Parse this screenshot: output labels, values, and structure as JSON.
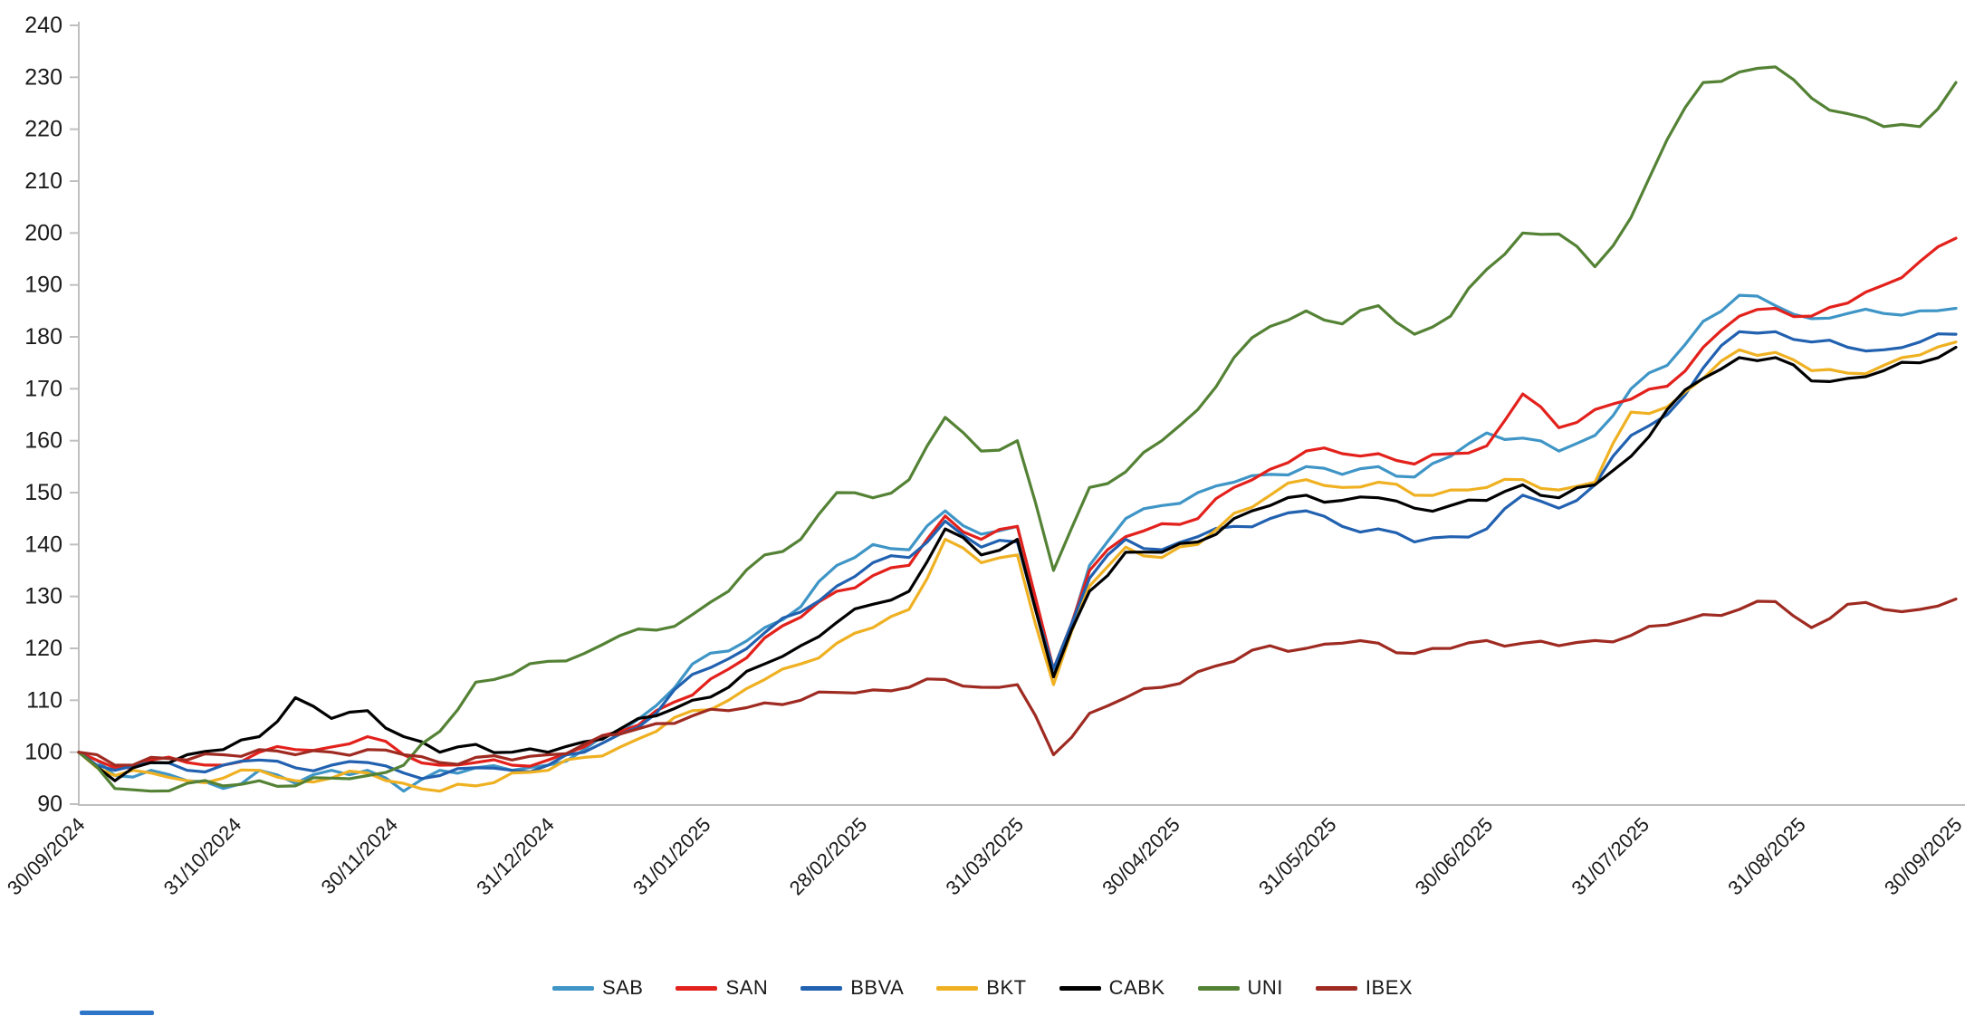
{
  "chart_data": {
    "type": "line",
    "title": "",
    "xlabel": "",
    "ylabel": "",
    "x_span": [
      "30/09/2024",
      "30/09/2025"
    ],
    "x_tick_labels": [
      "30/09/2024",
      "31/10/2024",
      "30/11/2024",
      "31/12/2024",
      "31/01/2025",
      "28/02/2025",
      "31/03/2025",
      "30/04/2025",
      "31/05/2025",
      "30/06/2025",
      "31/07/2025",
      "31/08/2025",
      "30/09/2025"
    ],
    "y_axis": {
      "min": 90,
      "max": 240,
      "step": 10,
      "tick_labels": [
        "90",
        "100",
        "110",
        "120",
        "130",
        "140",
        "150",
        "160",
        "170",
        "180",
        "190",
        "200",
        "210",
        "220",
        "230",
        "240"
      ]
    },
    "grid": false,
    "legend_position": "bottom",
    "sampling": "weekly (53 points per series, week 0 = 30/09/2024)",
    "axis_color": "#bfbfbf",
    "text_color": "#1a1a1a",
    "series": [
      {
        "name": "SAB",
        "color": "#3e95c6",
        "values": [
          100,
          95.5,
          96.5,
          94.5,
          93,
          96.5,
          94,
          96.5,
          96.5,
          92.5,
          96.5,
          97,
          96.5,
          97.5,
          100.5,
          104,
          109,
          117,
          119.5,
          124,
          128,
          136,
          140,
          139,
          146.5,
          142,
          143.5,
          114.5,
          136,
          145,
          147.5,
          150,
          152,
          153.5,
          155,
          153.5,
          155,
          153,
          157,
          161.5,
          160.5,
          158,
          161,
          170,
          174.5,
          183,
          188,
          186,
          183.5,
          184.5,
          184.5,
          185,
          185.5
        ]
      },
      {
        "name": "SAN",
        "color": "#e3211c",
        "values": [
          100,
          97,
          98.5,
          98,
          97.5,
          100,
          100.5,
          101,
          103,
          99.5,
          97.5,
          98,
          97.5,
          98.5,
          101,
          104,
          108,
          111,
          116,
          122,
          126,
          131,
          134,
          136,
          145.5,
          141,
          143.5,
          116,
          135,
          141.5,
          144,
          145,
          151,
          154.5,
          158,
          157.5,
          157.5,
          155.5,
          157.5,
          159,
          169,
          162.5,
          166,
          168,
          170.5,
          178,
          184,
          185.5,
          184,
          186.5,
          190,
          194.5,
          199
        ]
      },
      {
        "name": "BBVA",
        "color": "#2161b0",
        "values": [
          100,
          96.5,
          98,
          96.5,
          97.5,
          98.5,
          97,
          97.5,
          98,
          96,
          95.5,
          97,
          96.5,
          97.5,
          100,
          103.5,
          107.5,
          115,
          118,
          123,
          127,
          132,
          136.5,
          137.5,
          144.5,
          139.5,
          140.5,
          116,
          133.5,
          141,
          139,
          141.5,
          143.5,
          145,
          146.5,
          143.5,
          143,
          140.5,
          141.5,
          143,
          149.5,
          147,
          151.5,
          161,
          165,
          174,
          181,
          181,
          179,
          178,
          177.5,
          179,
          180.5
        ]
      },
      {
        "name": "BKT",
        "color": "#efb122",
        "values": [
          100,
          95.5,
          96,
          94.5,
          95,
          96.5,
          94.5,
          95,
          96,
          94,
          92.5,
          93.5,
          96,
          96.5,
          99,
          101,
          104,
          108,
          110,
          114,
          117,
          121,
          124,
          127.5,
          141,
          136.5,
          138,
          113,
          132,
          139.5,
          137.5,
          140,
          146,
          149.5,
          152.5,
          151,
          152,
          149.5,
          150.5,
          151,
          152.5,
          150.5,
          152,
          165.5,
          166.5,
          172,
          177.5,
          177,
          173.5,
          173,
          174.5,
          176.5,
          179
        ]
      },
      {
        "name": "CABK",
        "color": "#000000",
        "values": [
          100,
          94.5,
          98,
          99.5,
          100.5,
          103,
          110.5,
          106.5,
          108,
          103,
          100,
          101.5,
          100,
          100,
          102,
          104.5,
          107,
          110,
          112.5,
          117,
          120.5,
          125,
          128.5,
          131,
          143,
          138,
          141,
          114.5,
          131,
          138.5,
          138.5,
          140.5,
          145,
          147.5,
          149.5,
          148.5,
          149,
          147,
          147.5,
          148.5,
          151.5,
          149,
          151.5,
          157,
          166,
          172,
          176,
          176,
          171.5,
          172,
          173.5,
          175,
          178
        ]
      },
      {
        "name": "UNI",
        "color": "#548235",
        "values": [
          100,
          93,
          92.5,
          94,
          93.5,
          94.5,
          93.5,
          95,
          95.5,
          97.5,
          104,
          113.5,
          115,
          117.5,
          119,
          122.5,
          123.5,
          126.5,
          131,
          138,
          141,
          150,
          149,
          152.5,
          164.5,
          158,
          160,
          135,
          151,
          154,
          160,
          166,
          176,
          182,
          185,
          182.5,
          186,
          180.5,
          184,
          193,
          200,
          199.8,
          193.5,
          203,
          218,
          229,
          231,
          232,
          226,
          223,
          220.5,
          220.5,
          229
        ]
      },
      {
        "name": "IBEX",
        "color": "#9e2a21",
        "values": [
          100,
          97.5,
          99,
          98.5,
          99.5,
          100.5,
          99.5,
          100,
          100.5,
          99.5,
          98,
          99,
          98.5,
          99.5,
          101.5,
          103.5,
          105.5,
          107,
          108,
          109.5,
          110,
          111.5,
          112,
          112.5,
          114,
          112.5,
          113,
          99.5,
          107.5,
          110.5,
          112.5,
          115.5,
          117.5,
          120.5,
          120,
          121,
          121,
          119,
          120,
          121.5,
          121,
          120.5,
          121.5,
          122.5,
          124.5,
          126.5,
          127.5,
          129,
          124,
          128.5,
          127.5,
          127.5,
          129.5
        ]
      }
    ],
    "legend": [
      {
        "label": "SAB"
      },
      {
        "label": "SAN"
      },
      {
        "label": "BBVA"
      },
      {
        "label": "BKT"
      },
      {
        "label": "CABK"
      },
      {
        "label": "UNI"
      },
      {
        "label": "IBEX"
      }
    ]
  }
}
